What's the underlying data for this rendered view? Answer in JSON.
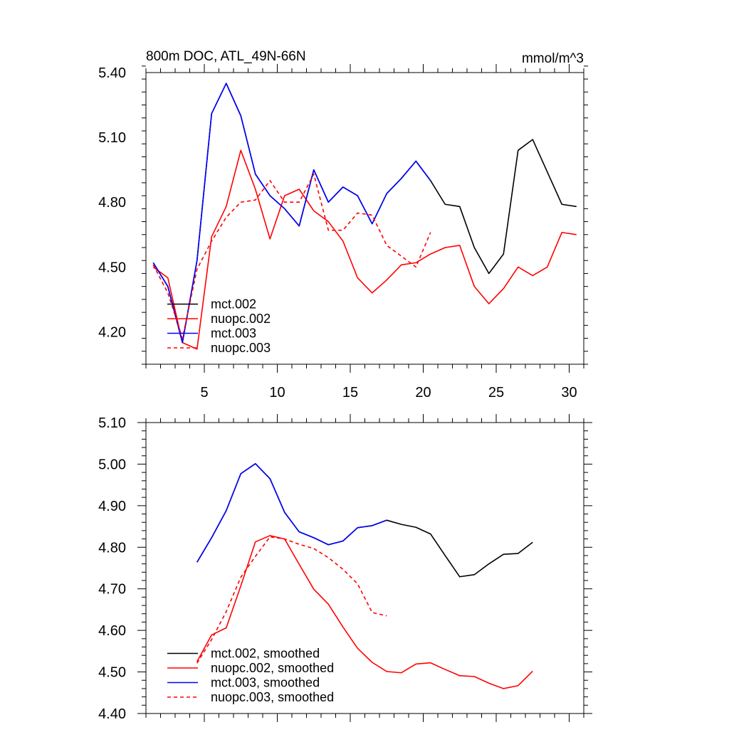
{
  "colors": {
    "mct002": "#000000",
    "nuopc002": "#ff0000",
    "mct003": "#0000ff",
    "nuopc003": "#ff0000",
    "axis": "#000000",
    "background": "#ffffff"
  },
  "chart_data": [
    {
      "type": "line",
      "title": "800m DOC, ATL_49N-66N",
      "units_label": "mmol/m^3",
      "xlabel": "",
      "ylabel": "",
      "xlim": [
        1,
        31
      ],
      "ylim": [
        4.05,
        5.4
      ],
      "yticks": [
        4.2,
        4.5,
        4.8,
        5.1,
        5.4
      ],
      "ytick_labels": [
        "4.20",
        "4.50",
        "4.80",
        "5.10",
        "5.40"
      ],
      "xticks": [
        5,
        10,
        15,
        20,
        25,
        30
      ],
      "xtick_labels": [
        "5",
        "10",
        "15",
        "20",
        "25",
        "30"
      ],
      "grid": false,
      "legend_position": "bottom-left",
      "series": [
        {
          "name": "mct.002",
          "color_key": "mct002",
          "dash": "solid",
          "x": [
            1.5,
            2.5,
            3.5,
            4.5,
            5.5,
            6.5,
            7.5,
            8.5,
            9.5,
            10.5,
            11.5,
            12.5,
            13.5,
            14.5,
            15.5,
            16.5,
            17.5,
            18.5,
            19.5,
            20.5,
            21.5,
            22.5,
            23.5,
            24.5,
            25.5,
            26.5,
            27.5,
            28.5,
            29.5,
            30.5
          ],
          "values": [
            4.52,
            4.41,
            4.15,
            4.53,
            5.21,
            5.35,
            5.2,
            4.93,
            4.83,
            4.77,
            4.69,
            4.95,
            4.8,
            4.87,
            4.83,
            4.7,
            4.84,
            4.91,
            4.99,
            4.9,
            4.79,
            4.78,
            4.59,
            4.47,
            4.56,
            5.04,
            5.09,
            4.94,
            4.79,
            4.78
          ]
        },
        {
          "name": "nuopc.002",
          "color_key": "nuopc002",
          "dash": "solid",
          "x": [
            1.5,
            2.5,
            3.5,
            4.5,
            5.5,
            6.5,
            7.5,
            8.5,
            9.5,
            10.5,
            11.5,
            12.5,
            13.5,
            14.5,
            15.5,
            16.5,
            17.5,
            18.5,
            19.5,
            20.5,
            21.5,
            22.5,
            23.5,
            24.5,
            25.5,
            26.5,
            27.5,
            28.5,
            29.5,
            30.5
          ],
          "values": [
            4.5,
            4.45,
            4.15,
            4.12,
            4.64,
            4.78,
            5.04,
            4.86,
            4.63,
            4.83,
            4.86,
            4.76,
            4.71,
            4.62,
            4.45,
            4.38,
            4.44,
            4.51,
            4.52,
            4.56,
            4.59,
            4.6,
            4.41,
            4.33,
            4.4,
            4.5,
            4.46,
            4.5,
            4.66,
            4.65
          ]
        },
        {
          "name": "mct.003",
          "color_key": "mct003",
          "dash": "solid",
          "x": [
            1.5,
            2.5,
            3.5,
            4.5,
            5.5,
            6.5,
            7.5,
            8.5,
            9.5,
            10.5,
            11.5,
            12.5,
            13.5,
            14.5,
            15.5,
            16.5,
            17.5,
            18.5,
            19.5,
            20.5
          ],
          "values": [
            4.52,
            4.41,
            4.15,
            4.53,
            5.21,
            5.35,
            5.2,
            4.93,
            4.83,
            4.77,
            4.69,
            4.95,
            4.8,
            4.87,
            4.83,
            4.7,
            4.84,
            4.91,
            4.99,
            4.9
          ]
        },
        {
          "name": "nuopc.003",
          "color_key": "nuopc003",
          "dash": "dashed",
          "x": [
            1.5,
            2.5,
            3.5,
            4.5,
            5.5,
            6.5,
            7.5,
            8.5,
            9.5,
            10.5,
            11.5,
            12.5,
            13.5,
            14.5,
            15.5,
            16.5,
            17.5,
            18.5,
            19.5,
            20.5
          ],
          "values": [
            4.51,
            4.38,
            4.17,
            4.49,
            4.62,
            4.73,
            4.8,
            4.81,
            4.9,
            4.8,
            4.8,
            4.93,
            4.67,
            4.67,
            4.75,
            4.74,
            4.6,
            4.55,
            4.5,
            4.66
          ]
        }
      ]
    },
    {
      "type": "line",
      "title": "",
      "xlabel": "",
      "ylabel": "",
      "xlim": [
        1,
        31
      ],
      "ylim": [
        4.4,
        5.1
      ],
      "yticks": [
        4.4,
        4.5,
        4.6,
        4.7,
        4.8,
        4.9,
        5.0,
        5.1
      ],
      "ytick_labels": [
        "4.40",
        "4.50",
        "4.60",
        "4.70",
        "4.80",
        "4.90",
        "5.00",
        "5.10"
      ],
      "xticks": [
        5,
        10,
        15,
        20,
        25,
        30
      ],
      "xtick_labels": [
        "",
        "",
        "",
        "",
        "",
        ""
      ],
      "grid": false,
      "legend_position": "bottom-left",
      "series": [
        {
          "name": "mct.002, smoothed",
          "color_key": "mct002",
          "dash": "solid",
          "x": [
            4.5,
            5.5,
            6.5,
            7.5,
            8.5,
            9.5,
            10.5,
            11.5,
            12.5,
            13.5,
            14.5,
            15.5,
            16.5,
            17.5,
            18.5,
            19.5,
            20.5,
            21.5,
            22.5,
            23.5,
            24.5,
            25.5,
            26.5,
            27.5
          ],
          "values": [
            4.764,
            4.823,
            4.888,
            4.977,
            5.001,
            4.965,
            4.884,
            4.837,
            4.823,
            4.806,
            4.815,
            4.847,
            4.852,
            4.865,
            4.855,
            4.848,
            4.832,
            4.78,
            4.729,
            4.734,
            4.76,
            4.783,
            4.785,
            4.812
          ]
        },
        {
          "name": "nuopc.002, smoothed",
          "color_key": "nuopc002",
          "dash": "solid",
          "x": [
            4.5,
            5.5,
            6.5,
            7.5,
            8.5,
            9.5,
            10.5,
            11.5,
            12.5,
            13.5,
            14.5,
            15.5,
            16.5,
            17.5,
            18.5,
            19.5,
            20.5,
            21.5,
            22.5,
            23.5,
            24.5,
            25.5,
            26.5,
            27.5
          ],
          "values": [
            4.525,
            4.589,
            4.606,
            4.707,
            4.813,
            4.828,
            4.82,
            4.759,
            4.699,
            4.663,
            4.608,
            4.557,
            4.523,
            4.501,
            4.498,
            4.519,
            4.522,
            4.506,
            4.491,
            4.489,
            4.473,
            4.46,
            4.467,
            4.502
          ]
        },
        {
          "name": "mct.003, smoothed",
          "color_key": "mct003",
          "dash": "solid",
          "x": [
            4.5,
            5.5,
            6.5,
            7.5,
            8.5,
            9.5,
            10.5,
            11.5,
            12.5,
            13.5,
            14.5,
            15.5,
            16.5,
            17.5
          ],
          "values": [
            4.764,
            4.823,
            4.888,
            4.977,
            5.001,
            4.965,
            4.884,
            4.837,
            4.823,
            4.806,
            4.815,
            4.847,
            4.852,
            4.865
          ]
        },
        {
          "name": "nuopc.003, smoothed",
          "color_key": "nuopc003",
          "dash": "dashed",
          "x": [
            4.5,
            5.5,
            6.5,
            7.5,
            8.5,
            9.5,
            10.5,
            11.5,
            12.5,
            13.5,
            14.5,
            15.5,
            16.5,
            17.5
          ],
          "values": [
            4.521,
            4.578,
            4.645,
            4.728,
            4.778,
            4.825,
            4.82,
            4.807,
            4.797,
            4.775,
            4.747,
            4.712,
            4.643,
            4.635
          ]
        }
      ]
    }
  ]
}
